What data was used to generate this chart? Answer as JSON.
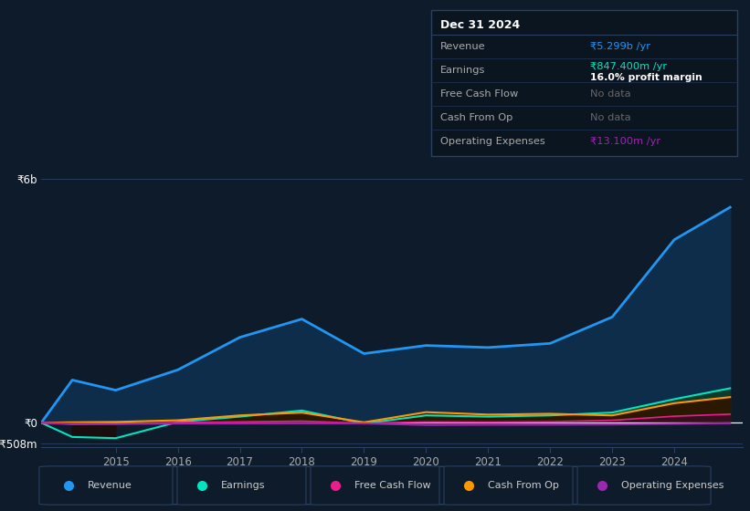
{
  "bg_color": "#0d1b2a",
  "plot_bg": "#0d1b2a",
  "grid_color": "#263d5a",
  "years": [
    2013.8,
    2014.3,
    2015.0,
    2016.0,
    2017.0,
    2018.0,
    2019.0,
    2020.0,
    2021.0,
    2022.0,
    2023.0,
    2024.0,
    2024.9
  ],
  "revenue": [
    0,
    1050,
    800,
    1300,
    2100,
    2550,
    1700,
    1900,
    1850,
    1950,
    2600,
    4500,
    5299
  ],
  "earnings": [
    0,
    -350,
    -380,
    20,
    150,
    300,
    -20,
    180,
    150,
    180,
    250,
    580,
    847
  ],
  "free_cash_flow": [
    0,
    -40,
    -30,
    5,
    20,
    40,
    -15,
    20,
    15,
    25,
    60,
    160,
    210
  ],
  "cash_from_op": [
    0,
    10,
    20,
    60,
    180,
    250,
    10,
    260,
    200,
    220,
    180,
    480,
    630
  ],
  "operating_expenses": [
    0,
    -20,
    -30,
    -20,
    -15,
    -12,
    -15,
    -55,
    -50,
    -48,
    -43,
    -28,
    -13
  ],
  "revenue_color": "#2196f3",
  "revenue_fill": "#0d2d4a",
  "earnings_color": "#00e5c0",
  "earnings_fill_pos": "#0d3a2d",
  "earnings_fill_neg": "#1a0d0d",
  "free_cash_flow_color": "#e91e8c",
  "free_cash_flow_fill": "#3a0d25",
  "cash_from_op_color": "#ff9800",
  "cash_from_op_fill": "#2a1800",
  "operating_expenses_color": "#9c27b0",
  "operating_expenses_fill": "#2a0d35",
  "legend_items": [
    "Revenue",
    "Earnings",
    "Free Cash Flow",
    "Cash From Op",
    "Operating Expenses"
  ],
  "legend_colors": [
    "#2196f3",
    "#00e5c0",
    "#e91e8c",
    "#ff9800",
    "#9c27b0"
  ],
  "ylim_min": -600,
  "ylim_max": 6500,
  "ytick_labels": [
    "-₹508m",
    "₹0",
    "₹6b"
  ],
  "ytick_vals": [
    -508,
    0,
    6000
  ],
  "xlabel_years": [
    2015,
    2016,
    2017,
    2018,
    2019,
    2020,
    2021,
    2022,
    2023,
    2024
  ],
  "info_box_title": "Dec 31 2024",
  "info_rows": [
    {
      "label": "Revenue",
      "value": "₹5.299b /yr",
      "value_color": "#2196f3",
      "second": null
    },
    {
      "label": "Earnings",
      "value": "₹847.400m /yr",
      "value_color": "#00e5c0",
      "second": "16.0% profit margin"
    },
    {
      "label": "Free Cash Flow",
      "value": "No data",
      "value_color": "#666666",
      "second": null
    },
    {
      "label": "Cash From Op",
      "value": "No data",
      "value_color": "#666666",
      "second": null
    },
    {
      "label": "Operating Expenses",
      "value": "₹13.100m /yr",
      "value_color": "#9c27b0",
      "second": null
    }
  ]
}
